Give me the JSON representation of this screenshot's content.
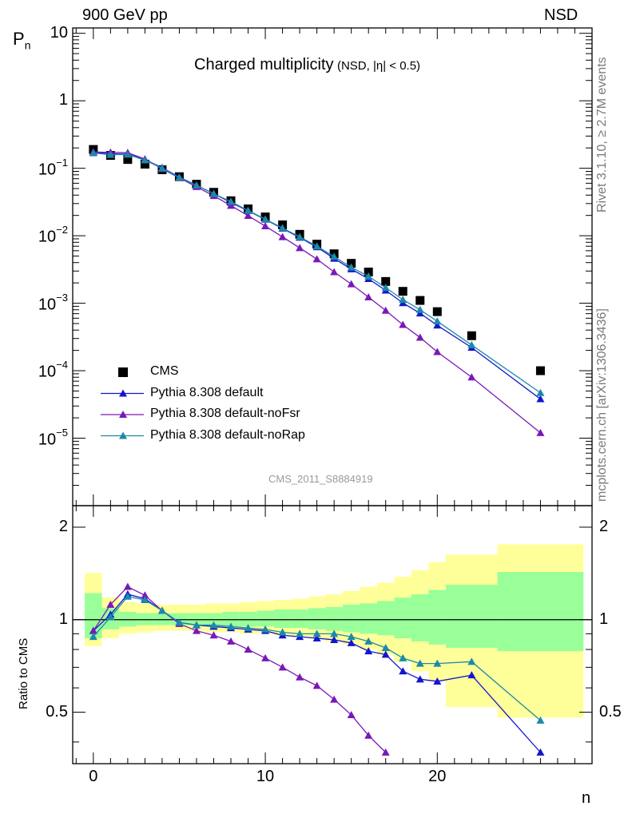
{
  "header": {
    "energy_label": "900 GeV pp",
    "process_label": "NSD"
  },
  "side": {
    "rivet_label": "Rivet 3.1.10, ≥ 2.7M events",
    "mcplots_label": "mcplots.cern.ch [arXiv:1306.3436]"
  },
  "chart_data": [
    {
      "type": "scatter",
      "title": "Charged multiplicity",
      "subtitle": "(NSD, |η| < 0.5)",
      "analysis_id": "CMS_2011_S8884919",
      "ylabel": "P",
      "ylabel_sub": "n",
      "xlabel": "n",
      "y_scale": "log",
      "xlim": [
        -1.2,
        29
      ],
      "ylim": [
        1e-06,
        12
      ],
      "ytick_labels": [
        {
          "v": 10,
          "text": "10"
        },
        {
          "v": 1,
          "text": "1"
        },
        {
          "v": 0.1,
          "base": "10",
          "exp": "−1"
        },
        {
          "v": 0.01,
          "base": "10",
          "exp": "−2"
        },
        {
          "v": 0.001,
          "base": "10",
          "exp": "−3"
        },
        {
          "v": 0.0001,
          "base": "10",
          "exp": "−4"
        },
        {
          "v": 1e-05,
          "base": "10",
          "exp": "−5"
        }
      ],
      "legend_position": "bottom-left",
      "series": [
        {
          "name": "CMS",
          "marker": "square",
          "color": "#000000",
          "x": [
            0,
            1,
            2,
            3,
            4,
            5,
            6,
            7,
            8,
            9,
            10,
            11,
            12,
            13,
            14,
            15,
            16,
            17,
            18,
            19,
            20,
            22,
            26
          ],
          "y": [
            0.19,
            0.155,
            0.135,
            0.115,
            0.095,
            0.075,
            0.058,
            0.044,
            0.033,
            0.025,
            0.019,
            0.0145,
            0.0105,
            0.0075,
            0.0054,
            0.0039,
            0.0029,
            0.0021,
            0.0015,
            0.0011,
            0.00075,
            0.00033,
            0.0001
          ]
        },
        {
          "name": "Pythia 8.308 default",
          "marker": "triangle",
          "color": "#1515cc",
          "x": [
            0,
            1,
            2,
            3,
            4,
            5,
            6,
            7,
            8,
            9,
            10,
            11,
            12,
            13,
            14,
            15,
            16,
            17,
            18,
            19,
            20,
            22,
            26
          ],
          "y": [
            0.174,
            0.163,
            0.162,
            0.134,
            0.102,
            0.074,
            0.056,
            0.042,
            0.031,
            0.0234,
            0.0174,
            0.0128,
            0.0094,
            0.0068,
            0.0046,
            0.0032,
            0.0023,
            0.00155,
            0.00101,
            0.00071,
            0.00047,
            0.00022,
            3.8e-05
          ]
        },
        {
          "name": "Pythia 8.308 default-noFsr",
          "marker": "triangle",
          "color": "#7a18b8",
          "x": [
            0,
            1,
            2,
            3,
            4,
            5,
            6,
            7,
            8,
            9,
            10,
            11,
            12,
            13,
            14,
            15,
            16,
            17,
            18,
            19,
            20,
            22,
            26
          ],
          "y": [
            0.174,
            0.172,
            0.17,
            0.137,
            0.098,
            0.072,
            0.053,
            0.039,
            0.028,
            0.0198,
            0.0139,
            0.0096,
            0.0066,
            0.0045,
            0.0029,
            0.00192,
            0.00123,
            0.00078,
            0.00048,
            0.00031,
            0.00019,
            8e-05,
            1.2e-05
          ]
        },
        {
          "name": "Pythia 8.308 default-noRap",
          "marker": "triangle",
          "color": "#1a8aaa",
          "x": [
            0,
            1,
            2,
            3,
            4,
            5,
            6,
            7,
            8,
            9,
            10,
            11,
            12,
            13,
            14,
            15,
            16,
            17,
            18,
            19,
            20,
            22,
            26
          ],
          "y": [
            0.168,
            0.159,
            0.16,
            0.132,
            0.1,
            0.073,
            0.056,
            0.042,
            0.032,
            0.0237,
            0.0176,
            0.013,
            0.0096,
            0.007,
            0.0049,
            0.0034,
            0.0025,
            0.0017,
            0.00113,
            0.0008,
            0.00054,
            0.00024,
            4.7e-05
          ]
        }
      ]
    },
    {
      "type": "scatter",
      "ylabel": "Ratio to CMS",
      "xlabel": "n",
      "y_scale": "log",
      "xlim": [
        -1.2,
        29
      ],
      "ylim": [
        0.34,
        2.35
      ],
      "xticks": [
        0,
        10,
        20
      ],
      "ytick_labels": [
        {
          "v": 2,
          "text": "2"
        },
        {
          "v": 1,
          "text": "1"
        },
        {
          "v": 0.5,
          "text": "0.5"
        }
      ],
      "reference_line": 1,
      "uncertainty_bands": [
        {
          "name": "outer",
          "color": "#ffff99",
          "bins": [
            [
              -0.5,
              0.5,
              0.82,
              1.42
            ],
            [
              0.5,
              1.5,
              0.87,
              1.18
            ],
            [
              1.5,
              2.5,
              0.9,
              1.14
            ],
            [
              2.5,
              3.5,
              0.91,
              1.13
            ],
            [
              3.5,
              4.5,
              0.92,
              1.12
            ],
            [
              4.5,
              5.5,
              0.92,
              1.12
            ],
            [
              5.5,
              6.5,
              0.92,
              1.12
            ],
            [
              6.5,
              7.5,
              0.91,
              1.13
            ],
            [
              7.5,
              8.5,
              0.91,
              1.13
            ],
            [
              8.5,
              9.5,
              0.9,
              1.14
            ],
            [
              9.5,
              10.5,
              0.9,
              1.15
            ],
            [
              10.5,
              11.5,
              0.89,
              1.16
            ],
            [
              11.5,
              12.5,
              0.88,
              1.17
            ],
            [
              12.5,
              13.5,
              0.87,
              1.19
            ],
            [
              13.5,
              14.5,
              0.85,
              1.21
            ],
            [
              14.5,
              15.5,
              0.83,
              1.24
            ],
            [
              15.5,
              16.5,
              0.8,
              1.28
            ],
            [
              16.5,
              17.5,
              0.77,
              1.32
            ],
            [
              17.5,
              18.5,
              0.73,
              1.38
            ],
            [
              18.5,
              19.5,
              0.68,
              1.45
            ],
            [
              19.5,
              20.5,
              0.63,
              1.54
            ],
            [
              20.5,
              23.5,
              0.52,
              1.63
            ],
            [
              23.5,
              28.5,
              0.48,
              1.76
            ]
          ]
        },
        {
          "name": "inner",
          "color": "#99ff99",
          "bins": [
            [
              -0.5,
              0.5,
              0.87,
              1.22
            ],
            [
              0.5,
              1.5,
              0.93,
              1.09
            ],
            [
              1.5,
              2.5,
              0.95,
              1.06
            ],
            [
              2.5,
              3.5,
              0.96,
              1.05
            ],
            [
              3.5,
              4.5,
              0.96,
              1.05
            ],
            [
              4.5,
              5.5,
              0.96,
              1.05
            ],
            [
              5.5,
              6.5,
              0.96,
              1.05
            ],
            [
              6.5,
              7.5,
              0.96,
              1.05
            ],
            [
              7.5,
              8.5,
              0.95,
              1.06
            ],
            [
              8.5,
              9.5,
              0.95,
              1.06
            ],
            [
              9.5,
              10.5,
              0.95,
              1.07
            ],
            [
              10.5,
              11.5,
              0.94,
              1.08
            ],
            [
              11.5,
              12.5,
              0.94,
              1.08
            ],
            [
              12.5,
              13.5,
              0.93,
              1.09
            ],
            [
              13.5,
              14.5,
              0.92,
              1.1
            ],
            [
              14.5,
              15.5,
              0.91,
              1.12
            ],
            [
              15.5,
              16.5,
              0.9,
              1.13
            ],
            [
              16.5,
              17.5,
              0.89,
              1.15
            ],
            [
              17.5,
              18.5,
              0.87,
              1.18
            ],
            [
              18.5,
              19.5,
              0.85,
              1.21
            ],
            [
              19.5,
              20.5,
              0.83,
              1.25
            ],
            [
              20.5,
              23.5,
              0.81,
              1.3
            ],
            [
              23.5,
              28.5,
              0.79,
              1.43
            ]
          ]
        }
      ],
      "series": [
        {
          "name": "Pythia 8.308 default",
          "color": "#1515cc",
          "x": [
            0,
            1,
            2,
            3,
            4,
            5,
            6,
            7,
            8,
            9,
            10,
            11,
            12,
            13,
            14,
            15,
            16,
            17,
            18,
            19,
            20,
            22,
            26
          ],
          "y": [
            0.92,
            1.04,
            1.21,
            1.17,
            1.07,
            0.98,
            0.96,
            0.95,
            0.94,
            0.93,
            0.92,
            0.89,
            0.88,
            0.87,
            0.86,
            0.84,
            0.79,
            0.77,
            0.68,
            0.64,
            0.63,
            0.66,
            0.37
          ]
        },
        {
          "name": "Pythia 8.308 default-noFsr",
          "color": "#7a18b8",
          "x": [
            0,
            1,
            2,
            3,
            4,
            5,
            6,
            7,
            8,
            9,
            10,
            11,
            12,
            13,
            14,
            15,
            16,
            17
          ],
          "y": [
            0.92,
            1.12,
            1.28,
            1.2,
            1.07,
            0.97,
            0.92,
            0.89,
            0.85,
            0.8,
            0.75,
            0.7,
            0.65,
            0.61,
            0.55,
            0.49,
            0.42,
            0.37
          ]
        },
        {
          "name": "Pythia 8.308 default-noRap",
          "color": "#1a8aaa",
          "x": [
            0,
            1,
            2,
            3,
            4,
            5,
            6,
            7,
            8,
            9,
            10,
            11,
            12,
            13,
            14,
            15,
            16,
            17,
            18,
            19,
            20,
            22,
            26
          ],
          "y": [
            0.88,
            1.02,
            1.19,
            1.16,
            1.07,
            0.98,
            0.96,
            0.96,
            0.95,
            0.94,
            0.93,
            0.91,
            0.9,
            0.9,
            0.9,
            0.88,
            0.85,
            0.81,
            0.75,
            0.72,
            0.72,
            0.73,
            0.47
          ]
        }
      ]
    }
  ]
}
